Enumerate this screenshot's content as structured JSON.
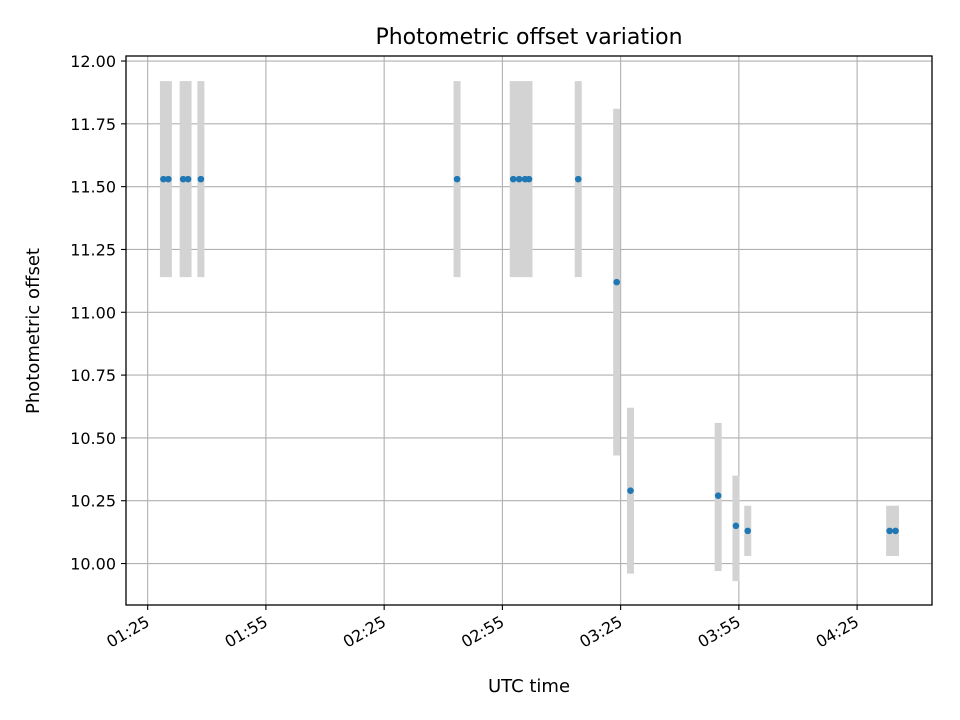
{
  "chart_data": {
    "type": "scatter",
    "title": "Photometric offset variation",
    "xlabel": "UTC time",
    "ylabel": "Photometric offset",
    "x_ticks": [
      "01:25",
      "01:55",
      "02:25",
      "02:55",
      "03:25",
      "03:55",
      "04:25"
    ],
    "y_ticks": [
      "10.00",
      "10.25",
      "10.50",
      "10.75",
      "11.00",
      "11.25",
      "11.50",
      "11.75",
      "12.00"
    ],
    "x_range": [
      "01:19:30",
      "04:44:00"
    ],
    "ylim": [
      9.835,
      12.02
    ],
    "grid": true,
    "point_color": "#1f77b4",
    "error_color": "#d3d3d3",
    "points": [
      {
        "time": "01:29:00",
        "y": 11.53,
        "ylow": 11.14,
        "yhigh": 11.92
      },
      {
        "time": "01:30:15",
        "y": 11.53,
        "ylow": 11.14,
        "yhigh": 11.92
      },
      {
        "time": "01:34:00",
        "y": 11.53,
        "ylow": 11.14,
        "yhigh": 11.92
      },
      {
        "time": "01:35:15",
        "y": 11.53,
        "ylow": 11.14,
        "yhigh": 11.92
      },
      {
        "time": "01:38:30",
        "y": 11.53,
        "ylow": 11.14,
        "yhigh": 11.92
      },
      {
        "time": "02:43:30",
        "y": 11.53,
        "ylow": 11.14,
        "yhigh": 11.92
      },
      {
        "time": "02:57:45",
        "y": 11.53,
        "ylow": 11.14,
        "yhigh": 11.92
      },
      {
        "time": "02:59:15",
        "y": 11.53,
        "ylow": 11.14,
        "yhigh": 11.92
      },
      {
        "time": "03:00:45",
        "y": 11.53,
        "ylow": 11.14,
        "yhigh": 11.92
      },
      {
        "time": "03:01:45",
        "y": 11.53,
        "ylow": 11.14,
        "yhigh": 11.92
      },
      {
        "time": "03:14:15",
        "y": 11.53,
        "ylow": 11.14,
        "yhigh": 11.92
      },
      {
        "time": "03:24:00",
        "y": 11.12,
        "ylow": 10.43,
        "yhigh": 11.81
      },
      {
        "time": "03:27:30",
        "y": 10.29,
        "ylow": 9.96,
        "yhigh": 10.62
      },
      {
        "time": "03:49:45",
        "y": 10.27,
        "ylow": 9.97,
        "yhigh": 10.56
      },
      {
        "time": "03:54:15",
        "y": 10.15,
        "ylow": 9.93,
        "yhigh": 10.35
      },
      {
        "time": "03:57:15",
        "y": 10.13,
        "ylow": 10.03,
        "yhigh": 10.23
      },
      {
        "time": "04:33:15",
        "y": 10.13,
        "ylow": 10.03,
        "yhigh": 10.23
      },
      {
        "time": "04:34:45",
        "y": 10.13,
        "ylow": 10.03,
        "yhigh": 10.23
      }
    ]
  }
}
